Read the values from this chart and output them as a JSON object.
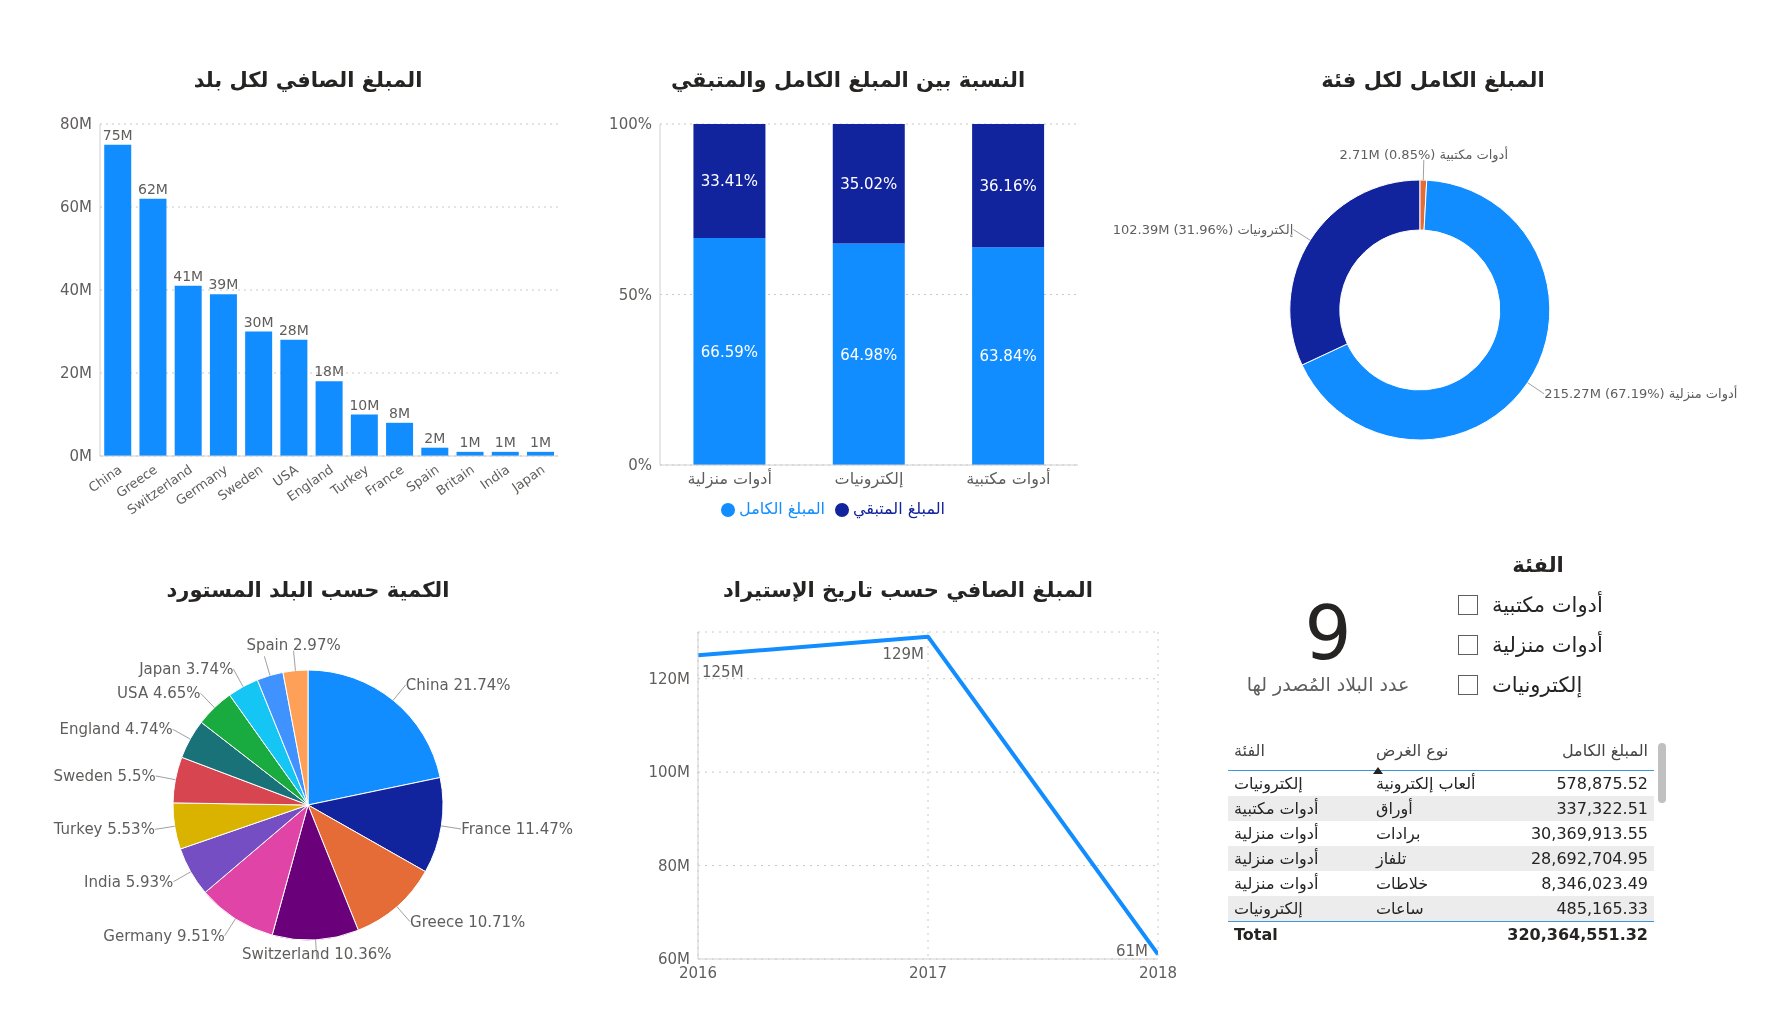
{
  "chart_data": [
    {
      "type": "bar",
      "title": "المبلغ الصافي لكل بلد",
      "categories": [
        "China",
        "Greece",
        "Switzerland",
        "Germany",
        "Sweden",
        "USA",
        "England",
        "Turkey",
        "France",
        "Spain",
        "Britain",
        "India",
        "Japan"
      ],
      "values": [
        75,
        62,
        41,
        39,
        30,
        28,
        18,
        10,
        8,
        2,
        1,
        1,
        1
      ],
      "value_labels": [
        "75M",
        "62M",
        "41M",
        "39M",
        "30M",
        "28M",
        "18M",
        "10M",
        "8M",
        "2M",
        "1M",
        "1M",
        "1M"
      ],
      "color": "#118dff",
      "ylim": [
        0,
        80
      ],
      "yticks": [
        {
          "value": 0,
          "label": "0M"
        },
        {
          "value": 20,
          "label": "20M"
        },
        {
          "value": 40,
          "label": "40M"
        },
        {
          "value": 60,
          "label": "60M"
        },
        {
          "value": 80,
          "label": "80M"
        }
      ],
      "grid": "y"
    },
    {
      "type": "bar",
      "title": "النسبة بين المبلغ الكامل والمتبقي",
      "categories": [
        "أدوات منزلية",
        "إلكترونيات",
        "أدوات مكتبية"
      ],
      "stacked": true,
      "series": [
        {
          "name": "المبلغ الكامل",
          "color": "#118dff",
          "values": [
            66.59,
            64.98,
            63.84
          ],
          "value_labels": [
            "66.59%",
            "64.98%",
            "63.84%"
          ]
        },
        {
          "name": "المبلغ المتبقي",
          "color": "#12239e",
          "values": [
            33.41,
            35.02,
            36.16
          ],
          "value_labels": [
            "33.41%",
            "35.02%",
            "36.16%"
          ]
        }
      ],
      "ylim": [
        0,
        100
      ],
      "yticks": [
        {
          "value": 0,
          "label": "0%"
        },
        {
          "value": 50,
          "label": "50%"
        },
        {
          "value": 100,
          "label": "100%"
        }
      ],
      "grid": "y",
      "legend": "bottom"
    },
    {
      "type": "donut",
      "title": "المبلغ الكامل لكل فئة",
      "categories": [
        "أدوات مكتبية",
        "أدوات منزلية",
        "إلكترونيات"
      ],
      "values": [
        0.85,
        67.19,
        31.96
      ],
      "value_labels": [
        "2.71M (0.85%)",
        "215.27M (67.19%)",
        "102.39M (31.96%)"
      ],
      "colors": [
        "#e66c37",
        "#118dff",
        "#12239e"
      ]
    },
    {
      "type": "pie",
      "title": "الكمية حسب البلد المستورد",
      "categories": [
        "China",
        "France",
        "Greece",
        "Switzerland",
        "Germany",
        "India",
        "Turkey",
        "Sweden",
        "England",
        "USA",
        "Japan",
        null,
        "Spain"
      ],
      "values": [
        21.74,
        11.47,
        10.71,
        10.36,
        9.51,
        5.93,
        5.53,
        5.5,
        4.74,
        4.65,
        3.74,
        3.15,
        2.97
      ],
      "value_labels": [
        "21.74%",
        "11.47%",
        "10.71%",
        "10.36%",
        "9.51%",
        "5.93%",
        "5.53%",
        "5.5%",
        "4.74%",
        "4.65%",
        "3.74%",
        null,
        "2.97%"
      ],
      "colors": [
        "#118dff",
        "#12239e",
        "#e66c37",
        "#6b007b",
        "#e044a7",
        "#744ec2",
        "#d9b300",
        "#d64550",
        "#197278",
        "#1aab40",
        "#15c6f4",
        "#4092ff",
        "#ffa058"
      ]
    },
    {
      "type": "line",
      "title": "المبلغ الصافي حسب تاريخ الإستيراد",
      "x": [
        2016,
        2017,
        2018
      ],
      "values": [
        125,
        129,
        61
      ],
      "value_labels": [
        "125M",
        "129M",
        "61M"
      ],
      "color": "#118dff",
      "xlim": [
        2016,
        2018
      ],
      "xticks": [
        2016,
        2017,
        2018
      ],
      "ylim": [
        60,
        130
      ],
      "yticks": [
        {
          "value": 60,
          "label": "60M"
        },
        {
          "value": 80,
          "label": "80M"
        },
        {
          "value": 100,
          "label": "100M"
        },
        {
          "value": 120,
          "label": "120M"
        }
      ],
      "grid": true,
      "marker": "none"
    },
    {
      "type": "other",
      "annotations": [
        "9",
        "عدد البلاد المُصدر لها",
        "الفئة",
        "أدوات مكتبية",
        "أدوات منزلية",
        "إلكترونيات",
        "الفئة",
        "نوع الغرض",
        "المبلغ الكامل",
        "إلكترونيات",
        "ألعاب إلكترونية",
        "578,875.52",
        "أدوات مكتبية",
        "أوراق",
        "337,322.51",
        "أدوات منزلية",
        "برادات",
        "30,369,913.55",
        "أدوات منزلية",
        "تلفاز",
        "28,692,704.95",
        "أدوات منزلية",
        "خلاطات",
        "8,346,023.49",
        "إلكترونيات",
        "ساعات",
        "485,165.33",
        "Total",
        "320,364,551.32"
      ]
    }
  ]
}
